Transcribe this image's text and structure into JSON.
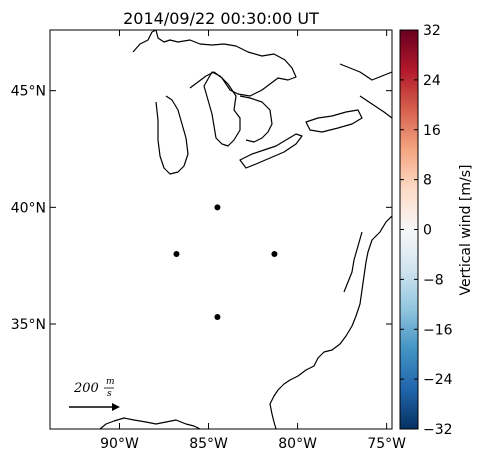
{
  "title": "2014/09/22 00:30:00 UT",
  "map": {
    "lon_ticks": [
      "90°W",
      "85°W",
      "80°W",
      "75°W"
    ],
    "lat_ticks": [
      "45°N",
      "40°N",
      "35°N"
    ],
    "stations": [
      {
        "lon": -84.5,
        "lat": 40.0
      },
      {
        "lon": -86.8,
        "lat": 38.0
      },
      {
        "lon": -81.3,
        "lat": 38.0
      },
      {
        "lon": -84.5,
        "lat": 35.3
      }
    ]
  },
  "scale_arrow": {
    "value": "200",
    "unit_num": "m",
    "unit_den": "s"
  },
  "colorbar": {
    "label": "Vertical wind [m/s]",
    "ticks": [
      "32",
      "24",
      "16",
      "8",
      "0",
      "−8",
      "−16",
      "−24",
      "−32"
    ],
    "range": [
      -32,
      32
    ],
    "colormap": [
      "#67001f",
      "#b2182b",
      "#d6604d",
      "#f4a582",
      "#fddbc7",
      "#f7f7f7",
      "#d1e5f0",
      "#92c5de",
      "#4393c3",
      "#2166ac",
      "#053061"
    ]
  }
}
